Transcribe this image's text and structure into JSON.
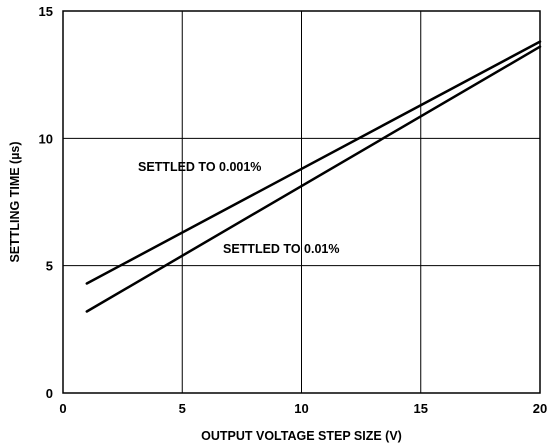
{
  "chart_data": {
    "type": "line",
    "title": "",
    "xlabel": "OUTPUT VOLTAGE STEP SIZE (V)",
    "ylabel": "SETTLING TIME (µs)",
    "xlim": [
      0,
      20
    ],
    "ylim": [
      0,
      15
    ],
    "x_ticks": [
      0,
      5,
      10,
      15,
      20
    ],
    "y_ticks": [
      0,
      5,
      10,
      15
    ],
    "x_tick_labels": [
      "0",
      "5",
      "10",
      "15",
      "20"
    ],
    "y_tick_labels": [
      "0",
      "5",
      "10",
      "15"
    ],
    "grid": true,
    "legend": "none",
    "series": [
      {
        "name": "SETTLED TO 0.001%",
        "color": "#000000",
        "x": [
          1,
          20
        ],
        "y": [
          4.3,
          13.8
        ]
      },
      {
        "name": "SETTLED TO 0.01%",
        "color": "#000000",
        "x": [
          1,
          20
        ],
        "y": [
          3.2,
          13.6
        ]
      }
    ]
  }
}
